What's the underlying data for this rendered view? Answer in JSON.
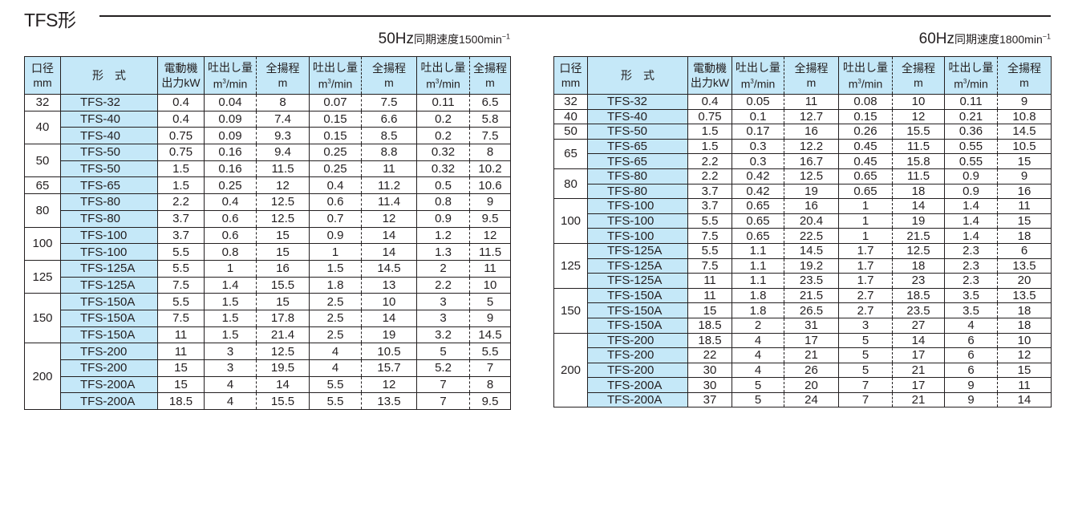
{
  "title": "TFS形",
  "headers": {
    "bore": "口径",
    "bore_unit": "mm",
    "model": "形　式",
    "motor": "電動機",
    "motor_unit": "出力kW",
    "flow": "吐出し量",
    "flow_unit": "m³/min",
    "head": "全揚程",
    "head_unit": "m"
  },
  "table50": {
    "hz": "50Hz",
    "speed": "同期速度1500min",
    "speed_exp": "−1",
    "groups": [
      {
        "bore": "32",
        "rows": [
          [
            "TFS-32",
            "0.4",
            "0.04",
            "8",
            "0.07",
            "7.5",
            "0.11",
            "6.5"
          ]
        ]
      },
      {
        "bore": "40",
        "rows": [
          [
            "TFS-40",
            "0.4",
            "0.09",
            "7.4",
            "0.15",
            "6.6",
            "0.2",
            "5.8"
          ],
          [
            "TFS-40",
            "0.75",
            "0.09",
            "9.3",
            "0.15",
            "8.5",
            "0.2",
            "7.5"
          ]
        ]
      },
      {
        "bore": "50",
        "rows": [
          [
            "TFS-50",
            "0.75",
            "0.16",
            "9.4",
            "0.25",
            "8.8",
            "0.32",
            "8"
          ],
          [
            "TFS-50",
            "1.5",
            "0.16",
            "11.5",
            "0.25",
            "11",
            "0.32",
            "10.2"
          ]
        ]
      },
      {
        "bore": "65",
        "rows": [
          [
            "TFS-65",
            "1.5",
            "0.25",
            "12",
            "0.4",
            "11.2",
            "0.5",
            "10.6"
          ]
        ]
      },
      {
        "bore": "80",
        "rows": [
          [
            "TFS-80",
            "2.2",
            "0.4",
            "12.5",
            "0.6",
            "11.4",
            "0.8",
            "9"
          ],
          [
            "TFS-80",
            "3.7",
            "0.6",
            "12.5",
            "0.7",
            "12",
            "0.9",
            "9.5"
          ]
        ]
      },
      {
        "bore": "100",
        "rows": [
          [
            "TFS-100",
            "3.7",
            "0.6",
            "15",
            "0.9",
            "14",
            "1.2",
            "12"
          ],
          [
            "TFS-100",
            "5.5",
            "0.8",
            "15",
            "1",
            "14",
            "1.3",
            "11.5"
          ]
        ]
      },
      {
        "bore": "125",
        "rows": [
          [
            "TFS-125A",
            "5.5",
            "1",
            "16",
            "1.5",
            "14.5",
            "2",
            "11"
          ],
          [
            "TFS-125A",
            "7.5",
            "1.4",
            "15.5",
            "1.8",
            "13",
            "2.2",
            "10"
          ]
        ]
      },
      {
        "bore": "150",
        "rows": [
          [
            "TFS-150A",
            "5.5",
            "1.5",
            "15",
            "2.5",
            "10",
            "3",
            "5"
          ],
          [
            "TFS-150A",
            "7.5",
            "1.5",
            "17.8",
            "2.5",
            "14",
            "3",
            "9"
          ],
          [
            "TFS-150A",
            "11",
            "1.5",
            "21.4",
            "2.5",
            "19",
            "3.2",
            "14.5"
          ]
        ]
      },
      {
        "bore": "200",
        "rows": [
          [
            "TFS-200",
            "11",
            "3",
            "12.5",
            "4",
            "10.5",
            "5",
            "5.5"
          ],
          [
            "TFS-200",
            "15",
            "3",
            "19.5",
            "4",
            "15.7",
            "5.2",
            "7"
          ],
          [
            "TFS-200A",
            "15",
            "4",
            "14",
            "5.5",
            "12",
            "7",
            "8"
          ],
          [
            "TFS-200A",
            "18.5",
            "4",
            "15.5",
            "5.5",
            "13.5",
            "7",
            "9.5"
          ]
        ]
      }
    ]
  },
  "table60": {
    "hz": "60Hz",
    "speed": "同期速度1800min",
    "speed_exp": "−1",
    "groups": [
      {
        "bore": "32",
        "rows": [
          [
            "TFS-32",
            "0.4",
            "0.05",
            "11",
            "0.08",
            "10",
            "0.11",
            "9"
          ]
        ]
      },
      {
        "bore": "40",
        "rows": [
          [
            "TFS-40",
            "0.75",
            "0.1",
            "12.7",
            "0.15",
            "12",
            "0.21",
            "10.8"
          ]
        ]
      },
      {
        "bore": "50",
        "rows": [
          [
            "TFS-50",
            "1.5",
            "0.17",
            "16",
            "0.26",
            "15.5",
            "0.36",
            "14.5"
          ]
        ]
      },
      {
        "bore": "65",
        "rows": [
          [
            "TFS-65",
            "1.5",
            "0.3",
            "12.2",
            "0.45",
            "11.5",
            "0.55",
            "10.5"
          ],
          [
            "TFS-65",
            "2.2",
            "0.3",
            "16.7",
            "0.45",
            "15.8",
            "0.55",
            "15"
          ]
        ]
      },
      {
        "bore": "80",
        "rows": [
          [
            "TFS-80",
            "2.2",
            "0.42",
            "12.5",
            "0.65",
            "11.5",
            "0.9",
            "9"
          ],
          [
            "TFS-80",
            "3.7",
            "0.42",
            "19",
            "0.65",
            "18",
            "0.9",
            "16"
          ]
        ]
      },
      {
        "bore": "100",
        "rows": [
          [
            "TFS-100",
            "3.7",
            "0.65",
            "16",
            "1",
            "14",
            "1.4",
            "11"
          ],
          [
            "TFS-100",
            "5.5",
            "0.65",
            "20.4",
            "1",
            "19",
            "1.4",
            "15"
          ],
          [
            "TFS-100",
            "7.5",
            "0.65",
            "22.5",
            "1",
            "21.5",
            "1.4",
            "18"
          ]
        ]
      },
      {
        "bore": "125",
        "rows": [
          [
            "TFS-125A",
            "5.5",
            "1.1",
            "14.5",
            "1.7",
            "12.5",
            "2.3",
            "6"
          ],
          [
            "TFS-125A",
            "7.5",
            "1.1",
            "19.2",
            "1.7",
            "18",
            "2.3",
            "13.5"
          ],
          [
            "TFS-125A",
            "11",
            "1.1",
            "23.5",
            "1.7",
            "23",
            "2.3",
            "20"
          ]
        ]
      },
      {
        "bore": "150",
        "rows": [
          [
            "TFS-150A",
            "11",
            "1.8",
            "21.5",
            "2.7",
            "18.5",
            "3.5",
            "13.5"
          ],
          [
            "TFS-150A",
            "15",
            "1.8",
            "26.5",
            "2.7",
            "23.5",
            "3.5",
            "18"
          ],
          [
            "TFS-150A",
            "18.5",
            "2",
            "31",
            "3",
            "27",
            "4",
            "18"
          ]
        ]
      },
      {
        "bore": "200",
        "rows": [
          [
            "TFS-200",
            "18.5",
            "4",
            "17",
            "5",
            "14",
            "6",
            "10"
          ],
          [
            "TFS-200",
            "22",
            "4",
            "21",
            "5",
            "17",
            "6",
            "12"
          ],
          [
            "TFS-200",
            "30",
            "4",
            "26",
            "5",
            "21",
            "6",
            "15"
          ],
          [
            "TFS-200A",
            "30",
            "5",
            "20",
            "7",
            "17",
            "9",
            "11"
          ],
          [
            "TFS-200A",
            "37",
            "5",
            "24",
            "7",
            "21",
            "9",
            "14"
          ]
        ]
      }
    ]
  }
}
